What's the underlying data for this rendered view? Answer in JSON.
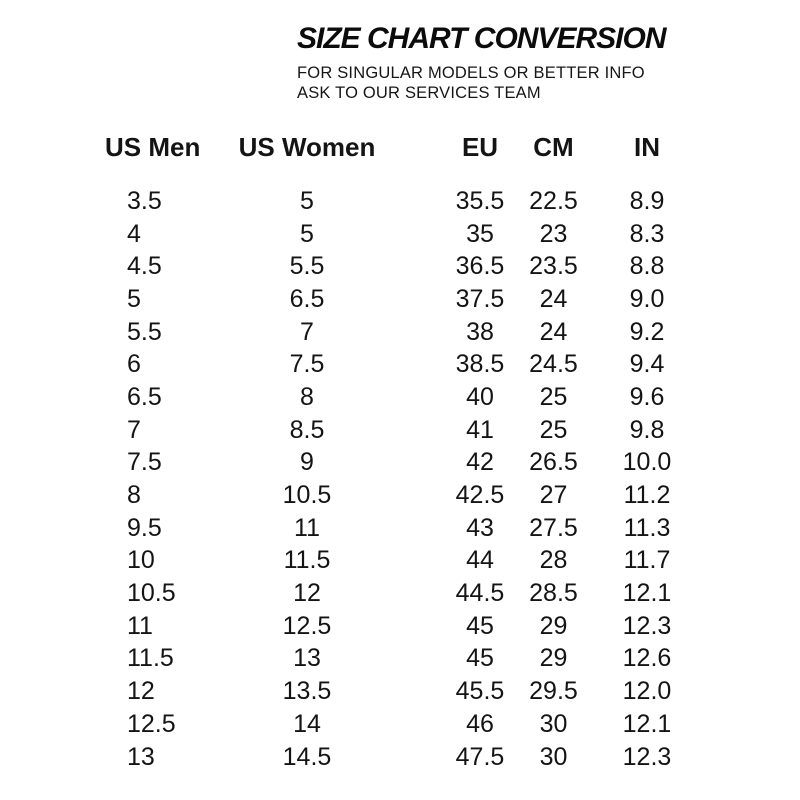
{
  "page": {
    "title": "SIZE CHART CONVERSION",
    "subtitle_line1": "FOR SINGULAR MODELS OR BETTER INFO",
    "subtitle_line2": "ASK TO OUR SERVICES TEAM"
  },
  "chart_data": {
    "type": "table",
    "title": "SIZE CHART CONVERSION",
    "columns": [
      "US Men",
      "US Women",
      "EU",
      "CM",
      "IN"
    ],
    "rows": [
      [
        "3.5",
        "5",
        "35.5",
        "22.5",
        "8.9"
      ],
      [
        "4",
        "5",
        "35",
        "23",
        "8.3"
      ],
      [
        "4.5",
        "5.5",
        "36.5",
        "23.5",
        "8.8"
      ],
      [
        "5",
        "6.5",
        "37.5",
        "24",
        "9.0"
      ],
      [
        "5.5",
        "7",
        "38",
        "24",
        "9.2"
      ],
      [
        "6",
        "7.5",
        "38.5",
        "24.5",
        "9.4"
      ],
      [
        "6.5",
        "8",
        "40",
        "25",
        "9.6"
      ],
      [
        "7",
        "8.5",
        "41",
        "25",
        "9.8"
      ],
      [
        "7.5",
        "9",
        "42",
        "26.5",
        "10.0"
      ],
      [
        "8",
        "10.5",
        "42.5",
        "27",
        "11.2"
      ],
      [
        "9.5",
        "11",
        "43",
        "27.5",
        "11.3"
      ],
      [
        "10",
        "11.5",
        "44",
        "28",
        "11.7"
      ],
      [
        "10.5",
        "12",
        "44.5",
        "28.5",
        "12.1"
      ],
      [
        "11",
        "12.5",
        "45",
        "29",
        "12.3"
      ],
      [
        "11.5",
        "13",
        "45",
        "29",
        "12.6"
      ],
      [
        "12",
        "13.5",
        "45.5",
        "29.5",
        "12.0"
      ],
      [
        "12.5",
        "14",
        "46",
        "30",
        "12.1"
      ],
      [
        "13",
        "14.5",
        "47.5",
        "30",
        "12.3"
      ]
    ]
  },
  "colors": {
    "text": "#141414",
    "background": "#ffffff"
  }
}
